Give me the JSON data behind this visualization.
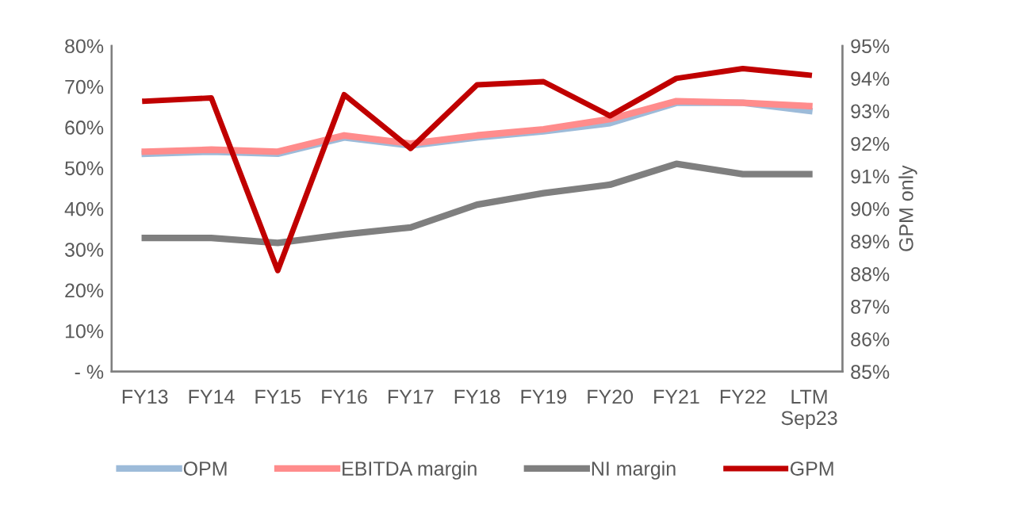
{
  "chart_data": {
    "type": "line",
    "categories": [
      "FY13",
      "FY14",
      "FY15",
      "FY16",
      "FY17",
      "FY18",
      "FY19",
      "FY20",
      "FY21",
      "FY22",
      "LTM\nSep23"
    ],
    "series": [
      {
        "name": "OPM",
        "color": "#9dbbd9",
        "values": [
          53.5,
          54,
          53.5,
          57.5,
          55.5,
          57.5,
          59,
          61,
          66,
          66,
          64
        ]
      },
      {
        "name": "EBITDA margin",
        "color": "#ff8c8c",
        "values": [
          54,
          54.5,
          54,
          58,
          56,
          58,
          59.5,
          62,
          66.4,
          66,
          65.2
        ]
      },
      {
        "name": "NI margin",
        "color": "#7f7f7f",
        "values": [
          32.8,
          32.8,
          31.6,
          33.7,
          35.4,
          41,
          43.8,
          45.9,
          51,
          48.5,
          48.5
        ]
      },
      {
        "name": "GPM",
        "color": "#c00000",
        "axis": "y2",
        "values": [
          93.3,
          93.4,
          88.1,
          93.5,
          91.85,
          93.8,
          93.9,
          92.85,
          94.0,
          94.3,
          94.1
        ]
      }
    ],
    "ylim": [
      0,
      80
    ],
    "yticks": [
      {
        "value": 0,
        "label": "- %"
      },
      {
        "value": 10,
        "label": "10%"
      },
      {
        "value": 20,
        "label": "20%"
      },
      {
        "value": 30,
        "label": "30%"
      },
      {
        "value": 40,
        "label": "40%"
      },
      {
        "value": 50,
        "label": "50%"
      },
      {
        "value": 60,
        "label": "60%"
      },
      {
        "value": 70,
        "label": "70%"
      },
      {
        "value": 80,
        "label": "80%"
      }
    ],
    "y2lim": [
      85,
      95
    ],
    "y2ticks": [
      {
        "value": 85,
        "label": "85%"
      },
      {
        "value": 86,
        "label": "86%"
      },
      {
        "value": 87,
        "label": "87%"
      },
      {
        "value": 88,
        "label": "88%"
      },
      {
        "value": 89,
        "label": "89%"
      },
      {
        "value": 90,
        "label": "90%"
      },
      {
        "value": 91,
        "label": "91%"
      },
      {
        "value": 92,
        "label": "92%"
      },
      {
        "value": 93,
        "label": "93%"
      },
      {
        "value": 94,
        "label": "94%"
      },
      {
        "value": 95,
        "label": "95%"
      }
    ],
    "y2label": "GPM only",
    "grid": false,
    "legend": "bottom",
    "marker": "none",
    "line_style": "solid"
  }
}
